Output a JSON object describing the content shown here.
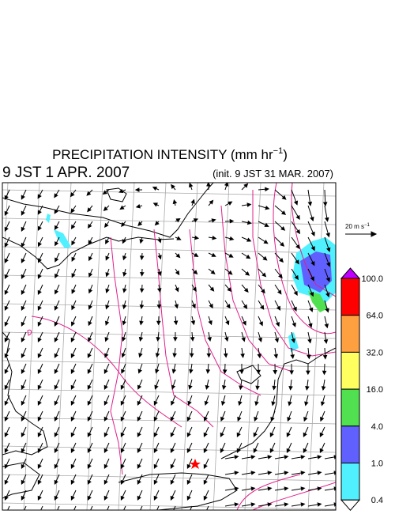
{
  "title": {
    "text": "PRECIPITATION INTENSITY (mm hr",
    "sup": "−1",
    "close": ")"
  },
  "valid_time": "9 JST 1 APR. 2007",
  "init_time": "(init. 9 JST 31 MAR. 2007)",
  "wind_scale": {
    "text": "20 m s",
    "sup": "−1"
  },
  "colorbar": {
    "labels": [
      "100.0",
      "64.0",
      "32.0",
      "16.0",
      "4.0",
      "1.0",
      "0.4"
    ],
    "colors": [
      "#ff0000",
      "#ffa040",
      "#ffff60",
      "#50e050",
      "#6060ff",
      "#50f0ff"
    ],
    "over_color": "#c000ff",
    "under_color": "#ffffff"
  }
}
